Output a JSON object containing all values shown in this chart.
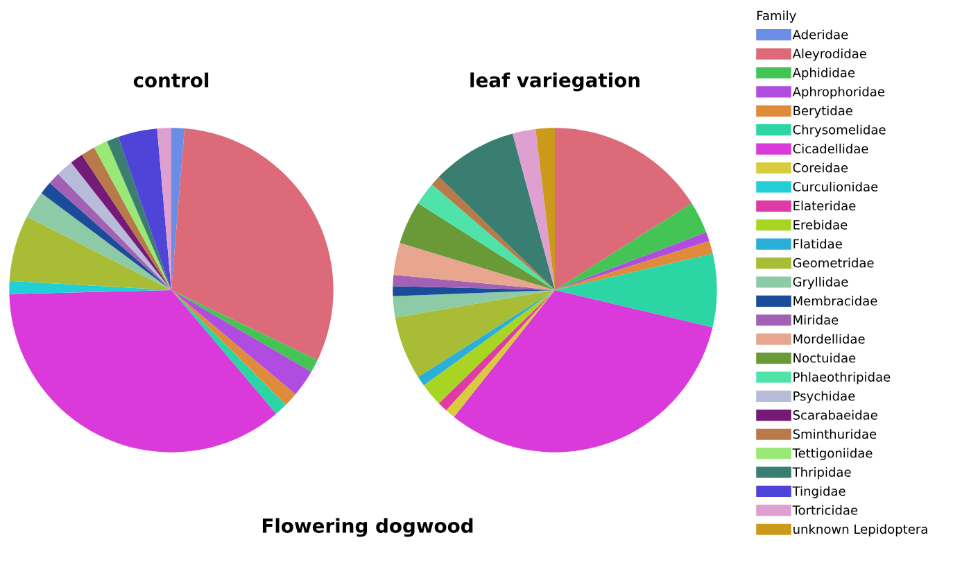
{
  "chart_data": {
    "type": "pie",
    "annotations": [
      "Flowering dogwood"
    ],
    "legend": "right",
    "legend_title": "Family",
    "categories": [
      "Aderidae",
      "Aleyrodidae",
      "Aphididae",
      "Aphrophoridae",
      "Berytidae",
      "Chrysomelidae",
      "Cicadellidae",
      "Coreidae",
      "Curculionidae",
      "Elateridae",
      "Erebidae",
      "Flatidae",
      "Geometridae",
      "Gryllidae",
      "Membracidae",
      "Miridae",
      "Mordellidae",
      "Noctuidae",
      "Phlaeothripidae",
      "Psychidae",
      "Scarabaeidae",
      "Sminthuridae",
      "Tettigoniidae",
      "Thripidae",
      "Tingidae",
      "Tortricidae",
      "unknown Lepidoptera"
    ],
    "colors": [
      "#6a8de6",
      "#dc6a78",
      "#45c456",
      "#b04ce0",
      "#e08a3c",
      "#2bd6a4",
      "#d93ad9",
      "#d8cc3c",
      "#22cfd6",
      "#df3aa5",
      "#a8d422",
      "#2ab0d8",
      "#a8bd35",
      "#8ccba6",
      "#1a4c9a",
      "#a261b5",
      "#e8a590",
      "#6a9a38",
      "#4fe3aa",
      "#b8bcd8",
      "#761a78",
      "#b87a48",
      "#9ae875",
      "#3a7e72",
      "#4f44d8",
      "#dea0d0",
      "#cc9a1a"
    ],
    "series": [
      {
        "name": "control",
        "values": [
          1.3,
          30.8,
          1.3,
          2.7,
          1.4,
          1.3,
          35.8,
          0,
          1.3,
          0,
          0,
          0,
          6.6,
          2.7,
          1.3,
          1.2,
          0,
          0,
          0,
          1.7,
          1.3,
          1.4,
          1.4,
          1.2,
          3.9,
          1.4,
          0
        ]
      },
      {
        "name": "leaf variegation",
        "values": [
          0,
          16.0,
          3.2,
          0.9,
          1.3,
          7.3,
          32.0,
          1.0,
          0,
          1.0,
          2.3,
          1.0,
          6.3,
          2.1,
          1.0,
          1.1,
          3.2,
          4.3,
          2.3,
          0,
          0,
          1.0,
          0,
          8.5,
          0,
          2.3,
          1.9
        ]
      }
    ]
  }
}
